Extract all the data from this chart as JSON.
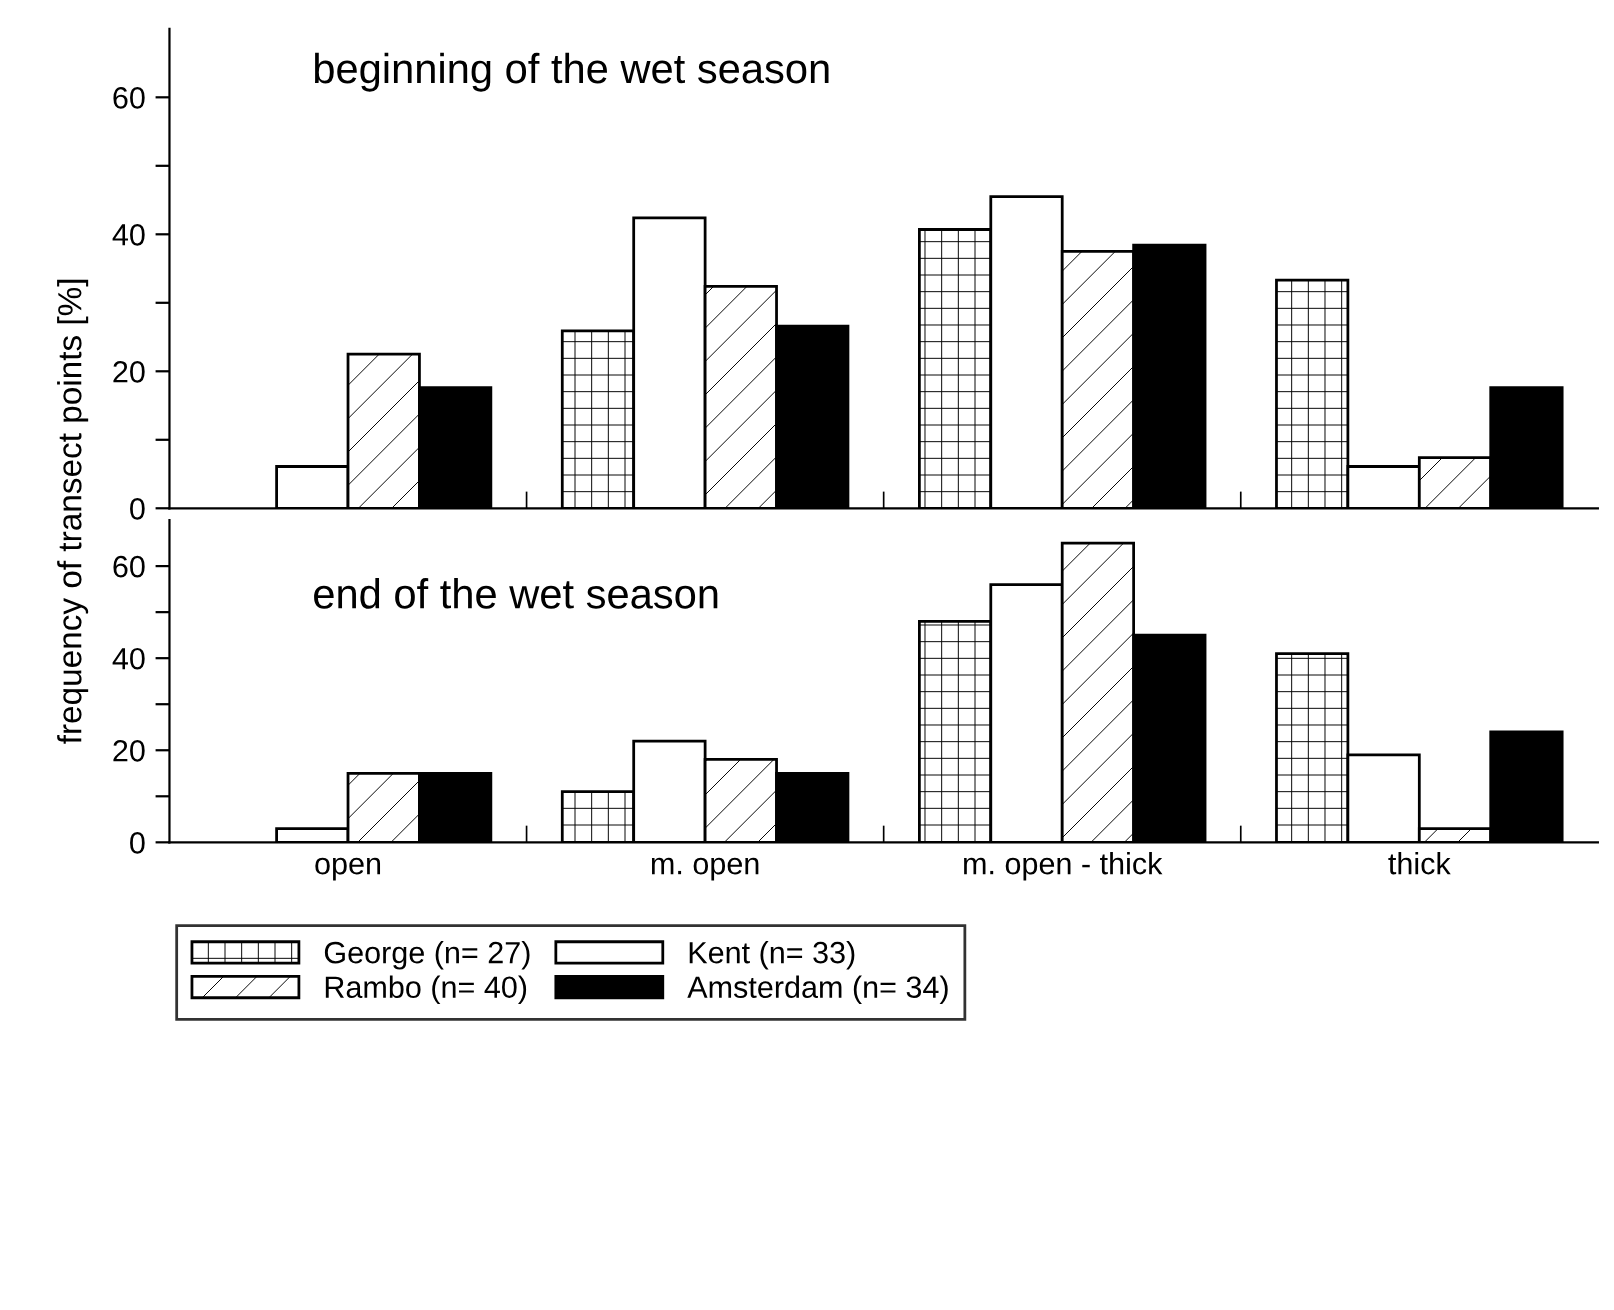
{
  "chart_data": [
    {
      "type": "bar",
      "title": "beginning of the wet season",
      "ylabel": "frequency of transect points [%]",
      "categories": [
        null,
        null,
        null,
        null
      ],
      "series": [
        {
          "name": "George (n= 27)",
          "color": "#ffffff",
          "values": [
            null,
            25.9,
            40.7,
            33.3
          ]
        },
        {
          "name": "Kent (n= 33)",
          "color": "#ffffff",
          "values": [
            6.1,
            42.4,
            45.5,
            6.1
          ]
        },
        {
          "name": "Rambo (n= 40)",
          "color": "#ffffff",
          "values": [
            22.5,
            32.4,
            37.5,
            7.4
          ]
        },
        {
          "name": "Amsterdam (n= 34)",
          "color": "#000000",
          "values": [
            17.6,
            26.6,
            38.4,
            17.6
          ]
        }
      ],
      "ylim": [
        0,
        70
      ],
      "yticks": [
        0,
        {
          "value": 10,
          "label": null
        },
        20,
        {
          "value": 30,
          "label": null
        },
        40,
        {
          "value": 50,
          "label": null
        },
        60
      ],
      "tick_labels": "y",
      "grid": false,
      "legend": "bottom"
    },
    {
      "type": "bar",
      "title": "end of the wet season",
      "categories": [
        "open",
        "m. open",
        "m. open - thick",
        "thick"
      ],
      "series": [
        {
          "color": "#ffffff",
          "values": [
            null,
            11,
            48,
            41
          ]
        },
        {
          "color": "#ffffff",
          "values": [
            3,
            22,
            56,
            19
          ]
        },
        {
          "color": "#ffffff",
          "values": [
            15,
            18,
            65,
            3
          ]
        },
        {
          "color": "#000000",
          "values": [
            15,
            15,
            45,
            24
          ]
        }
      ],
      "ylim": [
        0,
        70
      ],
      "yticks": [
        0,
        {
          "value": 10,
          "label": null
        },
        20,
        {
          "value": 30,
          "label": null
        },
        40,
        {
          "value": 50,
          "label": null
        },
        60
      ],
      "grid": false
    }
  ]
}
